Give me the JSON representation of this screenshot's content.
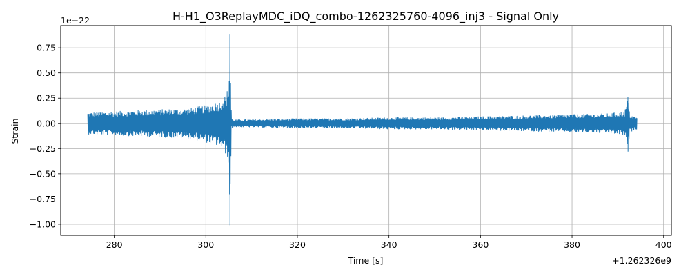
{
  "chart_data": {
    "type": "line",
    "title": "H-H1_O3ReplayMDC_iDQ_combo-1262325760-4096_inj3 - Signal Only",
    "xlabel": "Time [s]",
    "ylabel": "Strain",
    "y_scale_label": "1e−22",
    "x_offset_label": "+1.262326e9",
    "xlim": [
      268.3,
      401.7
    ],
    "ylim": [
      -1.11,
      0.97
    ],
    "grid": true,
    "x_ticks": [
      280,
      300,
      320,
      340,
      360,
      380,
      400
    ],
    "x_tick_labels": [
      "280",
      "300",
      "320",
      "340",
      "360",
      "380",
      "400"
    ],
    "y_ticks": [
      -1.0,
      -0.75,
      -0.5,
      -0.25,
      0.0,
      0.25,
      0.5,
      0.75
    ],
    "y_tick_labels": [
      "−1.00",
      "−0.75",
      "−0.50",
      "−0.25",
      "0.00",
      "0.25",
      "0.50",
      "0.75"
    ],
    "series": [
      {
        "color": "#1f77b4",
        "x_range": [
          274.2,
          394.2
        ],
        "envelope": {
          "x": [
            274.2,
            280,
            290,
            296,
            300,
            303,
            304.5,
            305.0,
            305.25,
            305.6,
            306,
            310,
            320,
            330,
            340,
            350,
            360,
            370,
            380,
            388,
            391.5,
            392.2,
            392.6,
            394.2
          ],
          "upper": [
            0.11,
            0.12,
            0.14,
            0.15,
            0.18,
            0.22,
            0.3,
            0.4,
            0.88,
            0.05,
            0.04,
            0.04,
            0.05,
            0.05,
            0.06,
            0.06,
            0.07,
            0.08,
            0.09,
            0.1,
            0.12,
            0.26,
            0.09,
            0.06
          ],
          "lower": [
            -0.11,
            -0.12,
            -0.14,
            -0.15,
            -0.19,
            -0.23,
            -0.32,
            -0.42,
            -1.01,
            -0.05,
            -0.04,
            -0.04,
            -0.05,
            -0.05,
            -0.06,
            -0.06,
            -0.07,
            -0.08,
            -0.09,
            -0.1,
            -0.12,
            -0.28,
            -0.09,
            -0.06
          ]
        }
      }
    ]
  }
}
